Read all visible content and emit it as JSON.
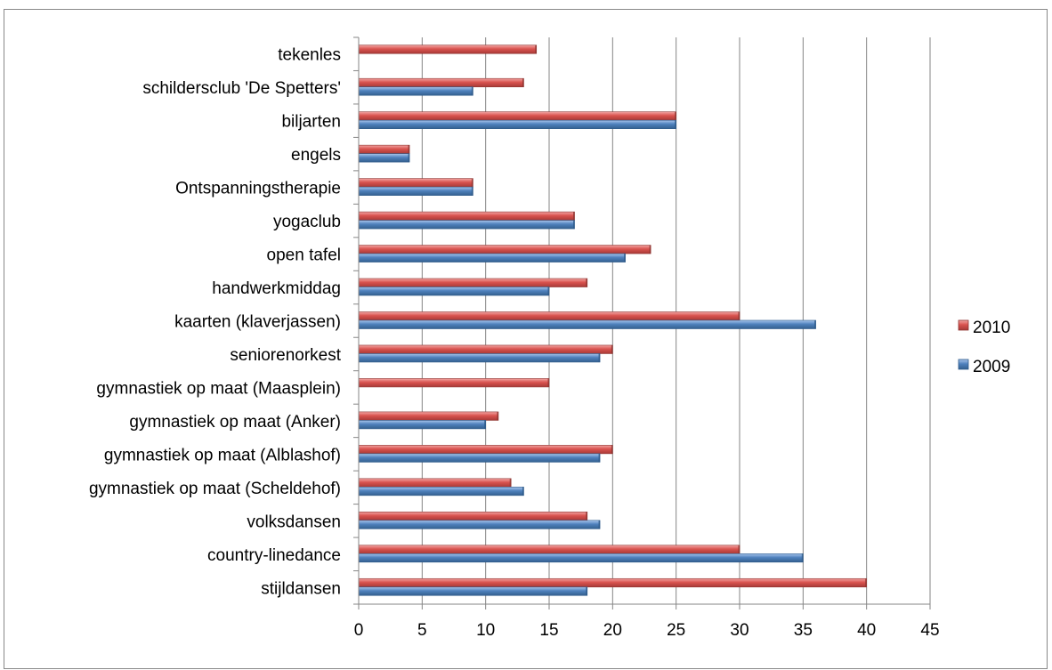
{
  "chart_data": {
    "type": "bar",
    "orientation": "horizontal",
    "title": "",
    "xlabel": "",
    "ylabel": "",
    "xlim": [
      0,
      45
    ],
    "xticks": [
      0,
      5,
      10,
      15,
      20,
      25,
      30,
      35,
      40,
      45
    ],
    "grid": "vertical",
    "legend_position": "right",
    "categories": [
      "tekenles",
      "schildersclub 'De Spetters'",
      "biljarten",
      "engels",
      "Ontspanningstherapie",
      "yogaclub",
      "open tafel",
      "handwerkmiddag",
      "kaarten (klaverjassen)",
      "seniorenorkest",
      "gymnastiek op maat (Maasplein)",
      "gymnastiek op maat (Anker)",
      "gymnastiek op maat (Alblashof)",
      "gymnastiek op maat (Scheldehof)",
      "volksdansen",
      "country-linedance",
      "stijldansen"
    ],
    "series": [
      {
        "name": "2010",
        "color": "#C0504D",
        "values": [
          14,
          13,
          25,
          4,
          9,
          17,
          23,
          18,
          30,
          20,
          15,
          11,
          20,
          12,
          18,
          30,
          40
        ]
      },
      {
        "name": "2009",
        "color": "#4F81BD",
        "values": [
          0,
          9,
          25,
          4,
          9,
          17,
          21,
          15,
          36,
          19,
          0,
          10,
          19,
          13,
          19,
          35,
          18
        ]
      }
    ]
  }
}
